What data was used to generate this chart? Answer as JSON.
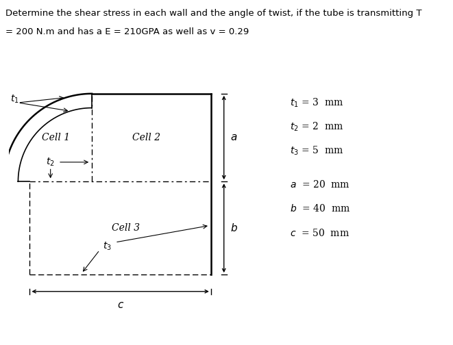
{
  "title_line1": "Determine the shear stress in each wall and the angle of twist, if the tube is transmitting T",
  "title_line2": "= 200 N.m and has a E = 210GPA as well as v = 0.29",
  "bg_color": "#c8c8c8",
  "fig_bg": "#ffffff",
  "cell_labels": [
    "Cell 1",
    "Cell 2",
    "Cell 3"
  ],
  "params_line1": "$t_1$ = 3  mm",
  "params_line2": "$t_2$ = 2  mm",
  "params_line3": "$t_3$ = 5  mm",
  "params_line4": "$a$  = 20  mm",
  "params_line5": "$b$  = 40  mm",
  "params_line6": "$c$  = 50  mm",
  "lw_outer": 1.8,
  "lw_inner": 1.2,
  "lw_dash": 1.0
}
